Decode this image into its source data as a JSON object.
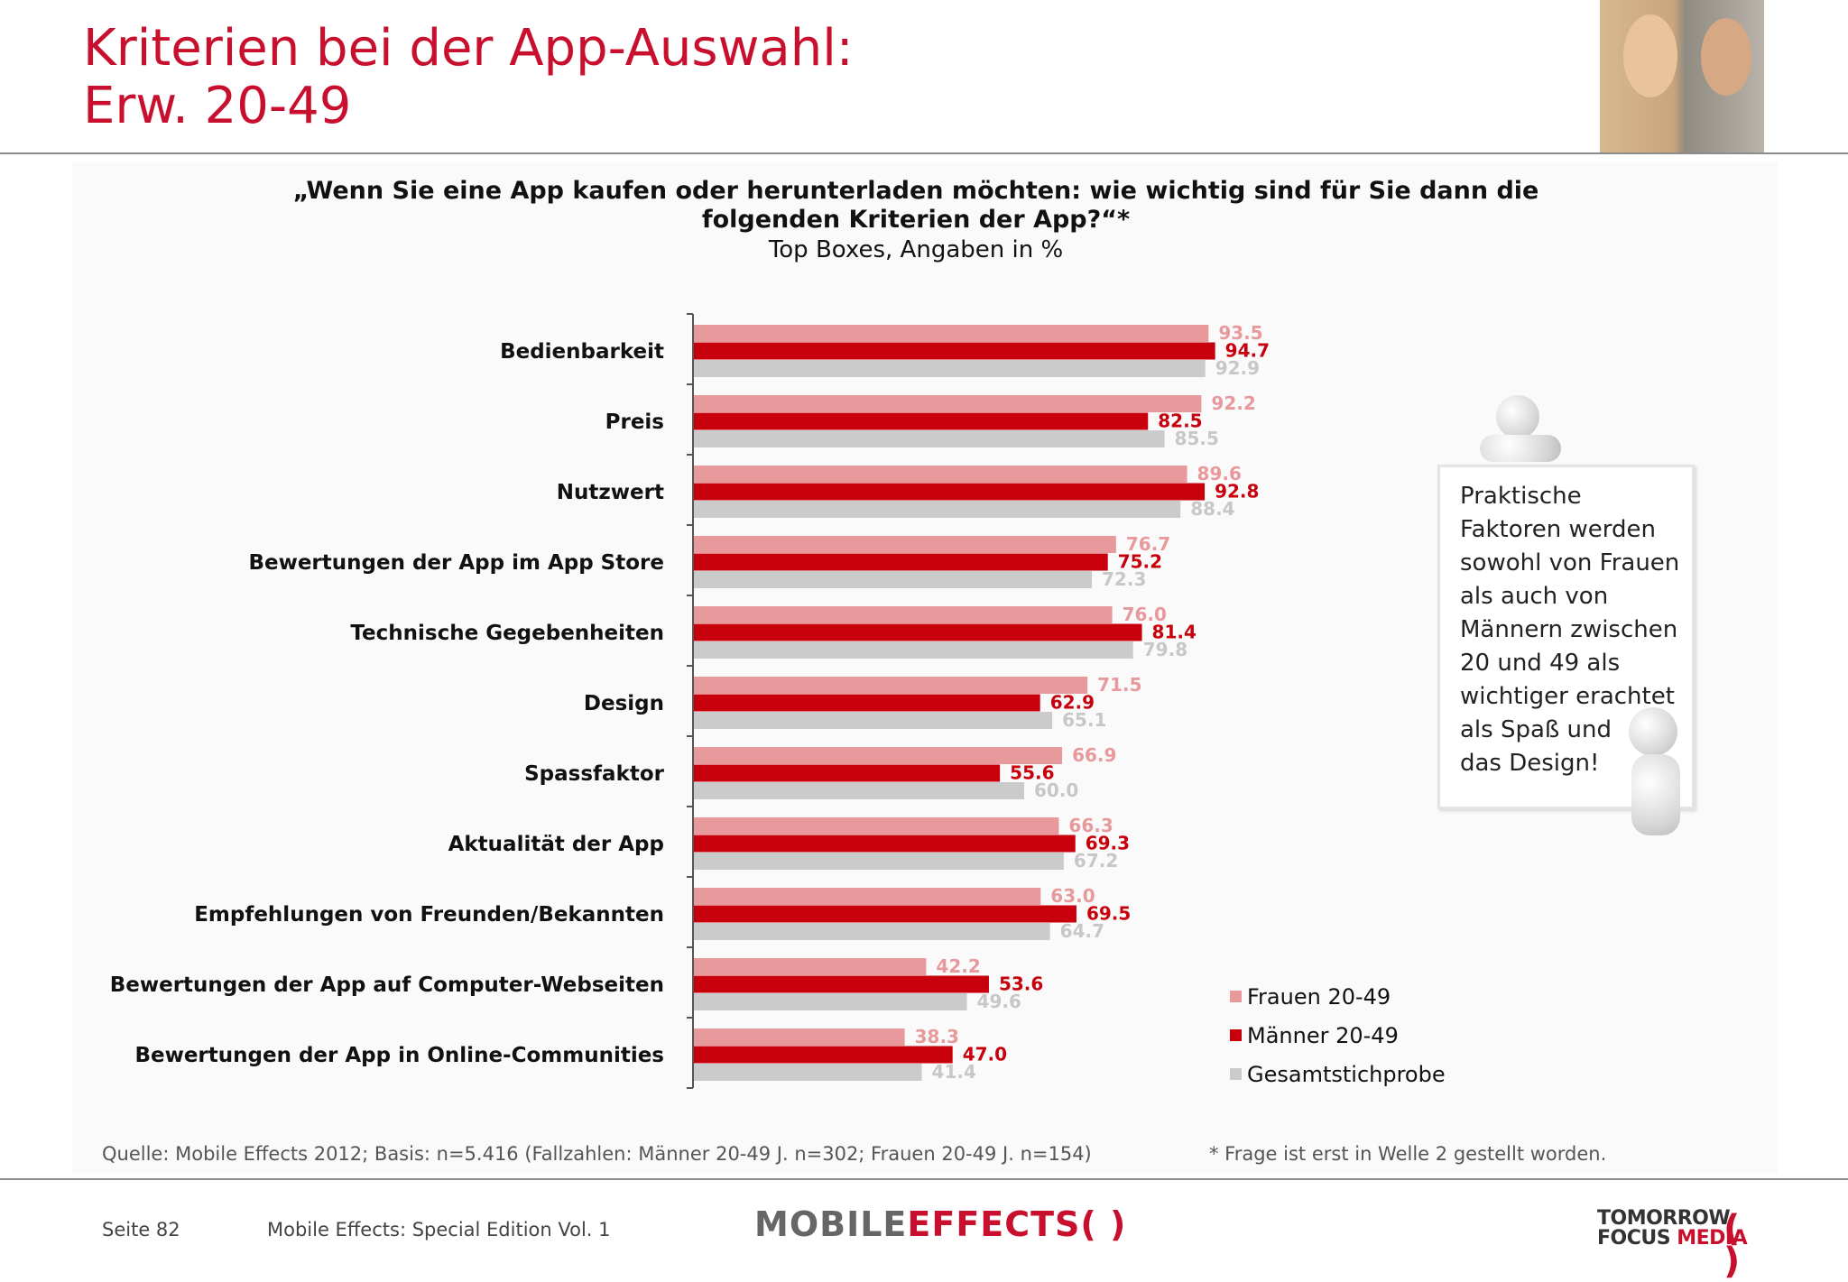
{
  "header": {
    "title_line1": "Kriterien bei der App-Auswahl:",
    "title_line2": "Erw. 20-49"
  },
  "question": {
    "line1": "„Wenn Sie eine App kaufen oder herunterladen möchten: wie wichtig sind für Sie dann die",
    "line2": "folgenden Kriterien der App?“*",
    "unit": "Top Boxes, Angaben in %"
  },
  "chart_data": {
    "type": "bar",
    "orientation": "horizontal",
    "categories": [
      "Bedienbarkeit",
      "Preis",
      "Nutzwert",
      "Bewertungen der App im App Store",
      "Technische Gegebenheiten",
      "Design",
      "Spassfaktor",
      "Aktualität der App",
      "Empfehlungen von Freunden/Bekannten",
      "Bewertungen der App auf Computer-Webseiten",
      "Bewertungen der App in Online-Communities"
    ],
    "series": [
      {
        "name": "Frauen 20-49",
        "color": "#e8999c",
        "values": [
          93.5,
          92.2,
          89.6,
          76.7,
          76.0,
          71.5,
          66.9,
          66.3,
          63.0,
          42.2,
          38.3
        ]
      },
      {
        "name": "Männer 20-49",
        "color": "#c8000b",
        "values": [
          94.7,
          82.5,
          92.8,
          75.2,
          81.4,
          62.9,
          55.6,
          69.3,
          69.5,
          53.6,
          47.0
        ]
      },
      {
        "name": "Gesamtstichprobe",
        "color": "#cccbcb",
        "values": [
          92.9,
          85.5,
          88.4,
          72.3,
          79.8,
          65.1,
          60.0,
          67.2,
          64.7,
          49.6,
          41.4
        ]
      }
    ],
    "xlim": [
      0,
      100
    ],
    "grid": false,
    "legend_position": "bottom-right",
    "label_colors": [
      "#e8999c",
      "#c8000b",
      "#c8c7c7"
    ]
  },
  "callout": {
    "text": "Praktische\nFaktoren werden\nsowohl von Frauen\nals auch von\nMännern zwischen\n20 und 49 als\nwichtiger erachtet\nals Spaß und\ndas Design!"
  },
  "footer": {
    "source": "Quelle: Mobile Effects 2012; Basis: n=5.416 (Fallzahlen: Männer 20-49 J. n=302; Frauen 20-49 J. n=154)",
    "footnote": "* Frage ist erst in Welle 2 gestellt worden.",
    "page": "Seite 82",
    "edition": "Mobile Effects: Special Edition Vol. 1",
    "logo_mobile": "MOBILE",
    "logo_effects": "EFFECTS",
    "logo_paren": "( )",
    "logo_tfm_line1": "TOMORROW",
    "logo_tfm_line2a": "FOCUS ",
    "logo_tfm_line2b": "MEDIA"
  }
}
